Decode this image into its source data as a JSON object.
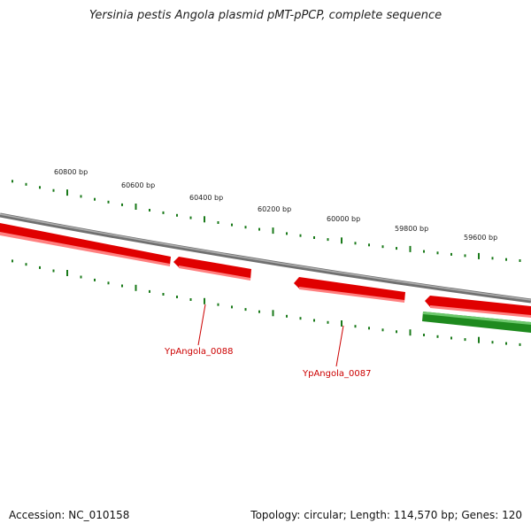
{
  "title": "Yersinia pestis Angola plasmid pMT-pPCP, complete sequence",
  "footer": {
    "accession": "Accession: NC_010158",
    "topology": "Topology: circular; Length: 114,570 bp; Genes: 120"
  },
  "scale_labels": [
    "60800 bp",
    "60600 bp",
    "60400 bp",
    "60200 bp",
    "60000 bp",
    "59800 bp",
    "59600 bp"
  ],
  "gene_labels": [
    "YpAngola_0088",
    "YpAngola_0087"
  ],
  "colors": {
    "backbone": "#8a8a8a",
    "reverse_gene": "#e00000",
    "forward_gene": "#1e8a1e",
    "tick": "#1a7a1a",
    "label": "#cc0000"
  }
}
